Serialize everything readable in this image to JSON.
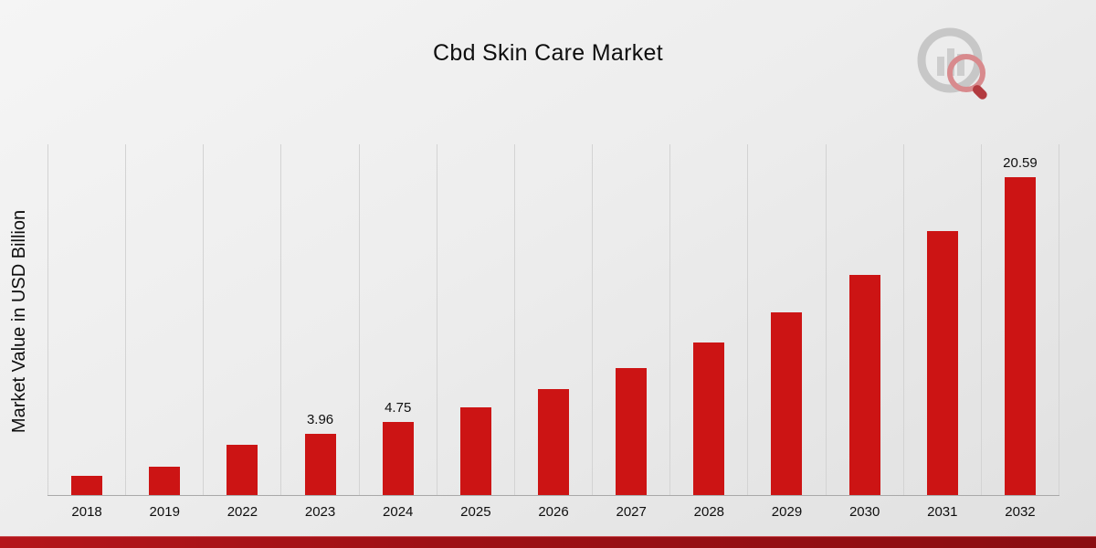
{
  "header": {
    "title": "Cbd Skin Care Market",
    "logo_icon": "bar-chart-magnifier-logo"
  },
  "chart_data": {
    "type": "bar",
    "title": "Cbd Skin Care Market",
    "xlabel": "",
    "ylabel": "Market Value in USD Billion",
    "categories": [
      "2018",
      "2019",
      "2022",
      "2023",
      "2024",
      "2025",
      "2026",
      "2027",
      "2028",
      "2029",
      "2030",
      "2031",
      "2032"
    ],
    "values": [
      1.25,
      1.81,
      3.28,
      3.96,
      4.75,
      5.7,
      6.85,
      8.22,
      9.87,
      11.85,
      14.25,
      17.1,
      20.59
    ],
    "data_labels": {
      "2023": "3.96",
      "2024": "4.75",
      "2032": "20.59"
    },
    "bar_color": "#cc1414",
    "ylim": [
      0,
      22.7
    ],
    "grid": "vertical",
    "legend": "none",
    "gridline_color": "#d3d3d3",
    "baseline_color": "#a9a9a9",
    "background_colors": [
      "#f5f5f5",
      "#e0e0e0"
    ],
    "footer_bar_colors": [
      "#b5161b",
      "#8a0d11"
    ]
  }
}
